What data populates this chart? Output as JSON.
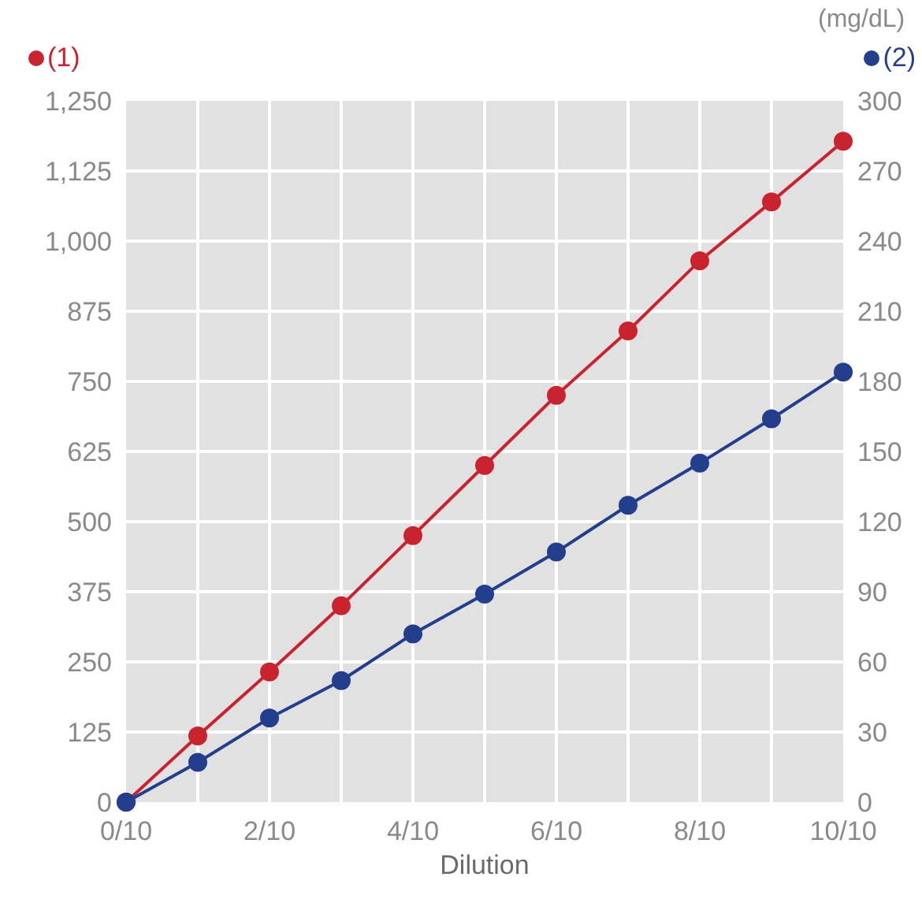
{
  "chart_data": {
    "type": "line",
    "xlabel": "Dilution",
    "y2label": "(mg/dL)",
    "x": [
      0,
      0.1,
      0.2,
      0.3,
      0.4,
      0.5,
      0.6,
      0.7,
      0.8,
      0.9,
      1
    ],
    "series": [
      {
        "name": "(1)",
        "color": "#c8232f",
        "values": [
          0,
          118,
          232,
          350,
          475,
          600,
          725,
          840,
          965,
          1070,
          1178
        ]
      },
      {
        "name": "(2)",
        "color": "#233e8c",
        "axis": "y2",
        "values": [
          0,
          17,
          36,
          52,
          72,
          89,
          107,
          127,
          145,
          164,
          184
        ]
      }
    ],
    "xlim": [
      0,
      1
    ],
    "xticks": [
      {
        "value": 0,
        "label": "0/10"
      },
      {
        "value": 0.1,
        "label": null
      },
      {
        "value": 0.2,
        "label": "2/10"
      },
      {
        "value": 0.3,
        "label": null
      },
      {
        "value": 0.4,
        "label": "4/10"
      },
      {
        "value": 0.5,
        "label": null
      },
      {
        "value": 0.6,
        "label": "6/10"
      },
      {
        "value": 0.7,
        "label": null
      },
      {
        "value": 0.8,
        "label": "8/10"
      },
      {
        "value": 0.9,
        "label": null
      },
      {
        "value": 1,
        "label": "10/10"
      }
    ],
    "ylim": [
      0,
      1250
    ],
    "yticks": [
      {
        "value": 0,
        "label": "0"
      },
      {
        "value": 125,
        "label": "125"
      },
      {
        "value": 250,
        "label": "250"
      },
      {
        "value": 375,
        "label": "375"
      },
      {
        "value": 500,
        "label": "500"
      },
      {
        "value": 625,
        "label": "625"
      },
      {
        "value": 750,
        "label": "750"
      },
      {
        "value": 875,
        "label": "875"
      },
      {
        "value": 1000,
        "label": "1,000"
      },
      {
        "value": 1125,
        "label": "1,125"
      },
      {
        "value": 1250,
        "label": "1,250"
      }
    ],
    "y2lim": [
      0,
      300
    ],
    "y2ticks": [
      0,
      30,
      60,
      90,
      120,
      150,
      180,
      210,
      240,
      270,
      300
    ],
    "grid": true,
    "legend": "top",
    "marker": "circle",
    "line_style": "solid"
  }
}
